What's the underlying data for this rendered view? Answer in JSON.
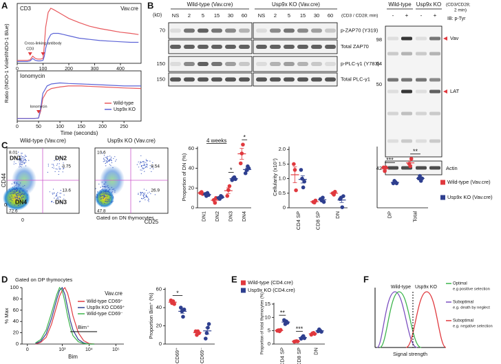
{
  "panel_labels": [
    "A",
    "B",
    "C",
    "D",
    "E",
    "F"
  ],
  "blot": {
    "kd_label": "(kD)",
    "groups": [
      "Wild-type (Vav.cre)",
      "Usp9x KO (Vav.cre)"
    ],
    "lanes": [
      "NS",
      "2",
      "5",
      "15",
      "30",
      "60",
      "NS",
      "2",
      "5",
      "15",
      "30",
      "60"
    ],
    "condition": "(CD3 / CD28; min)",
    "rows": [
      {
        "kd": 70,
        "label": "p-ZAP70 (Y319)"
      },
      {
        "label": "Total ZAP70"
      },
      {
        "kd": 150,
        "label": "p-PLC-γ1 (Y783)"
      },
      {
        "kd": 150,
        "label": "Total PLC-γ1"
      }
    ]
  },
  "ptyr": {
    "groups": [
      "Wild-type",
      "Usp9x KO"
    ],
    "treatment": [
      "-",
      "+",
      "-",
      "+"
    ],
    "condition": [
      "(CD3/CD28;",
      "2 min)"
    ],
    "ib": "IB: p-Tyr",
    "kd": [
      98,
      64,
      50
    ],
    "bands": [
      "Vav",
      "LAT"
    ],
    "loading": {
      "kd": 42,
      "label": "Actin"
    }
  },
  "flow": {
    "x_label": "CD25",
    "y_label": "CD44",
    "x_zero": 0,
    "y_zero": 0,
    "note": "Gated on DN thymocytes",
    "plots": [
      {
        "title": "Wild-type (Vav.cre)",
        "gates": [
          {
            "label": "DN1",
            "value": 8.01
          },
          {
            "label": "DN2",
            "value": 3.75
          },
          {
            "label": "DN3",
            "value": 13.6
          },
          {
            "label": "DN4",
            "value": 72.6
          }
        ]
      },
      {
        "title": "Usp9x KO (Vav.cre)",
        "gates": [
          {
            "value": 10.6
          },
          {
            "value": 8.54
          },
          {
            "value": 26.9
          },
          {
            "value": 47.8
          }
        ]
      }
    ]
  },
  "model": {
    "labels": [
      "Wild-type",
      "Usp9x KO"
    ],
    "x_label": "Signal strength",
    "legend": [
      {
        "title": "Optimal",
        "note": "e.g positive selection",
        "color": "#3cb44b"
      },
      {
        "title": "Suboptimal",
        "note": "e.g. death by neglect",
        "color": "#7b4fc0"
      },
      {
        "title": "Suboptimal",
        "note": "e.g. negative selection",
        "color": "#e0393e"
      }
    ]
  },
  "chart_data": [
    {
      "type": "line",
      "title": "CD3",
      "subtitle": "Vav.cre",
      "frame": true,
      "xlim": [
        0,
        480
      ],
      "xticks": [
        0,
        100,
        200,
        300,
        400
      ],
      "ylim": [
        0,
        1
      ],
      "x": [
        0,
        20,
        40,
        50,
        60,
        70,
        80,
        90,
        100,
        105,
        110,
        120,
        130,
        140,
        160,
        180,
        200,
        240,
        280,
        320,
        360,
        400,
        440,
        470
      ],
      "series": [
        {
          "color": "#e8585c",
          "values": [
            0.05,
            0.05,
            0.05,
            0.06,
            0.12,
            0.08,
            0.07,
            0.07,
            0.08,
            0.3,
            0.6,
            0.85,
            0.92,
            0.9,
            0.85,
            0.8,
            0.75,
            0.68,
            0.62,
            0.58,
            0.55,
            0.52,
            0.5,
            0.48
          ]
        },
        {
          "color": "#5c63d6",
          "values": [
            0.03,
            0.03,
            0.03,
            0.04,
            0.08,
            0.05,
            0.04,
            0.04,
            0.05,
            0.12,
            0.25,
            0.4,
            0.48,
            0.5,
            0.5,
            0.48,
            0.46,
            0.42,
            0.4,
            0.38,
            0.37,
            0.36,
            0.35,
            0.35
          ]
        }
      ],
      "annotations": [
        {
          "label": "CD3",
          "x": 50
        },
        {
          "label": "Cross-linking antibody",
          "x": 100
        }
      ]
    },
    {
      "type": "line",
      "title": "Ionomycin",
      "frame": true,
      "xlabel": "Time (seconds)",
      "ylabel": "Ratio (INDO-1 Violet/INDO-1 Blue)",
      "xlim": [
        0,
        290
      ],
      "xticks": [
        0,
        50,
        100,
        150,
        200,
        250
      ],
      "ylim": [
        0,
        1
      ],
      "x": [
        0,
        20,
        40,
        50,
        55,
        60,
        70,
        80,
        100,
        120,
        150,
        200,
        250,
        290
      ],
      "series": [
        {
          "name": "Wild-type",
          "color": "#e8585c",
          "values": [
            0.05,
            0.05,
            0.05,
            0.06,
            0.2,
            0.45,
            0.6,
            0.65,
            0.68,
            0.7,
            0.7,
            0.68,
            0.66,
            0.65
          ]
        },
        {
          "name": "Usp9x KO",
          "color": "#5c63d6",
          "values": [
            0.05,
            0.05,
            0.05,
            0.06,
            0.25,
            0.55,
            0.7,
            0.74,
            0.76,
            0.75,
            0.74,
            0.72,
            0.7,
            0.7
          ]
        }
      ],
      "annotations": [
        {
          "label": "Ionomycin",
          "x": 50
        }
      ],
      "legend": "lower right"
    },
    {
      "type": "line",
      "title": "Gated on DP thymocytes",
      "subtitle": "Vav.cre",
      "xlabel": "Bim",
      "ylabel": "% Max",
      "xlim": [
        1.5,
        5.3
      ],
      "xticks": [
        {
          "value": 1.7,
          "label": "0"
        },
        {
          "value": 3,
          "label": "10³"
        },
        {
          "value": 4,
          "label": "10⁴"
        },
        {
          "value": 5,
          "label": "10⁵"
        }
      ],
      "ylim": [
        0,
        100
      ],
      "yticks": [
        0,
        20,
        40,
        60,
        80,
        100
      ],
      "x": [
        2.0,
        2.2,
        2.4,
        2.6,
        2.8,
        2.9,
        3.0,
        3.1,
        3.2,
        3.3,
        3.4,
        3.6,
        3.8,
        4.0,
        4.2
      ],
      "series": [
        {
          "name": "Wild-type CD69⁺",
          "color": "#e0393e",
          "values": [
            0,
            3,
            12,
            35,
            68,
            85,
            95,
            100,
            90,
            72,
            50,
            20,
            6,
            1,
            0
          ]
        },
        {
          "name": "Usp9x KO CD69⁺",
          "color": "#2e3f8f",
          "values": [
            1,
            5,
            18,
            45,
            80,
            95,
            100,
            88,
            65,
            42,
            25,
            8,
            2,
            0,
            0
          ]
        },
        {
          "name": "Wild-type CD69⁻",
          "color": "#3cb44b",
          "values": [
            2,
            8,
            25,
            55,
            88,
            100,
            95,
            75,
            50,
            30,
            15,
            4,
            1,
            0,
            0
          ]
        }
      ],
      "gate": {
        "label": "Bim⁺",
        "range": [
          3.3,
          4.3
        ]
      },
      "legend": "upper right"
    },
    {
      "type": "dot",
      "title": "4 weeks",
      "ylabel": "Proportion of DN (%)",
      "categories": [
        "DN1",
        "DN2",
        "DN3",
        "DN4"
      ],
      "ylim": [
        0,
        62
      ],
      "yticks": [
        0,
        20,
        40,
        60
      ],
      "series": [
        {
          "color": "#e0393e",
          "values": [
            [
              15,
              16,
              14
            ],
            [
              8,
              5,
              10
            ],
            [
              12,
              18,
              22
            ],
            [
              45,
              55,
              64
            ]
          ]
        },
        {
          "color": "#2e3f8f",
          "values": [
            [
              14,
              12,
              15,
              13
            ],
            [
              10,
              9,
              12,
              11
            ],
            [
              28,
              30,
              31,
              29
            ],
            [
              35,
              38,
              42,
              40
            ]
          ]
        }
      ],
      "significance": [
        {
          "category": "DN3",
          "label": "*"
        },
        {
          "category": "DN4",
          "label": "*"
        }
      ]
    },
    {
      "type": "dot",
      "ylabel": "Cellularity (x10⁷)",
      "categories": [
        "CD4 SP",
        "CD8 SP",
        "DN"
      ],
      "ylim": [
        0,
        2.1
      ],
      "yticks": [
        0,
        0.5,
        {
          "value": 1,
          "label": "1.0"
        },
        1.5,
        {
          "value": 2,
          "label": "2.0"
        }
      ],
      "series": [
        {
          "color": "#e0393e",
          "values": [
            [
              1.5,
              1.3,
              0.6
            ],
            [
              0.2,
              0.18,
              0.25
            ],
            [
              0.5,
              0.45,
              0.55
            ]
          ]
        },
        {
          "color": "#2e3f8f",
          "values": [
            [
              1.3,
              1.0,
              0.7,
              0.9
            ],
            [
              0.3,
              0.25,
              0.35,
              0.2
            ],
            [
              0.3,
              0.35,
              0.02,
              0.4
            ]
          ]
        }
      ]
    },
    {
      "type": "dot",
      "categories": [
        "DP",
        "Total"
      ],
      "ylim": [
        0,
        25
      ],
      "series": [
        {
          "name": "Wild-type (Vav.cre)",
          "color": "#e0393e",
          "values": [
            [
              16.5,
              15,
              16.5
            ],
            [
              18,
              17,
              20
            ]
          ]
        },
        {
          "name": "Usp9x KO (Vav.cre)",
          "color": "#2e3f8f",
          "values": [
            [
              10,
              11,
              10.5,
              10
            ],
            [
              12,
              13,
              11,
              12
            ]
          ]
        }
      ],
      "significance": [
        {
          "category": "DP",
          "label": "***"
        },
        {
          "category": "Total",
          "label": "**"
        }
      ],
      "legend": "right"
    },
    {
      "type": "dot",
      "ylabel": "Proportion Bim⁺ (%)",
      "categories": [
        "CD69⁺",
        "CD69⁻"
      ],
      "ylim": [
        0,
        62
      ],
      "yticks": [
        0,
        20,
        40,
        60
      ],
      "series": [
        {
          "color": "#e0393e",
          "values": [
            [
              48,
              45,
              47,
              44
            ],
            [
              14,
              10,
              14,
              12
            ]
          ]
        },
        {
          "color": "#2e3f8f",
          "values": [
            [
              40,
              36,
              30,
              38
            ],
            [
              6,
              12,
              18,
              22
            ]
          ]
        }
      ],
      "significance": [
        {
          "category": "CD69⁺",
          "label": "*"
        }
      ]
    },
    {
      "type": "dot",
      "ylabel": "Proportion of total thymocytes (%)",
      "categories": [
        "CD4 SP",
        "CD8 SP",
        "DN"
      ],
      "ylim": [
        0,
        15.5
      ],
      "yticks": [
        0,
        5,
        10,
        15
      ],
      "series": [
        {
          "name": "Wild-type (CD4.cre)",
          "color": "#e0393e",
          "values": [
            [
              5,
              5.2,
              4.8,
              5.3
            ],
            [
              0.9,
              1,
              1.1,
              1
            ],
            [
              3.5,
              4,
              4.2,
              3.8
            ]
          ]
        },
        {
          "name": "Usp9x KO (CD4.cre)",
          "color": "#2e3f8f",
          "values": [
            [
              9,
              7.5,
              8.5,
              8
            ],
            [
              2,
              2.5,
              3,
              2.2
            ],
            [
              4.8,
              5.5,
              5,
              4.6
            ]
          ]
        }
      ],
      "significance": [
        {
          "category": "CD4 SP",
          "label": "**"
        },
        {
          "category": "CD8 SP",
          "label": "***"
        }
      ],
      "legend": "top"
    }
  ]
}
